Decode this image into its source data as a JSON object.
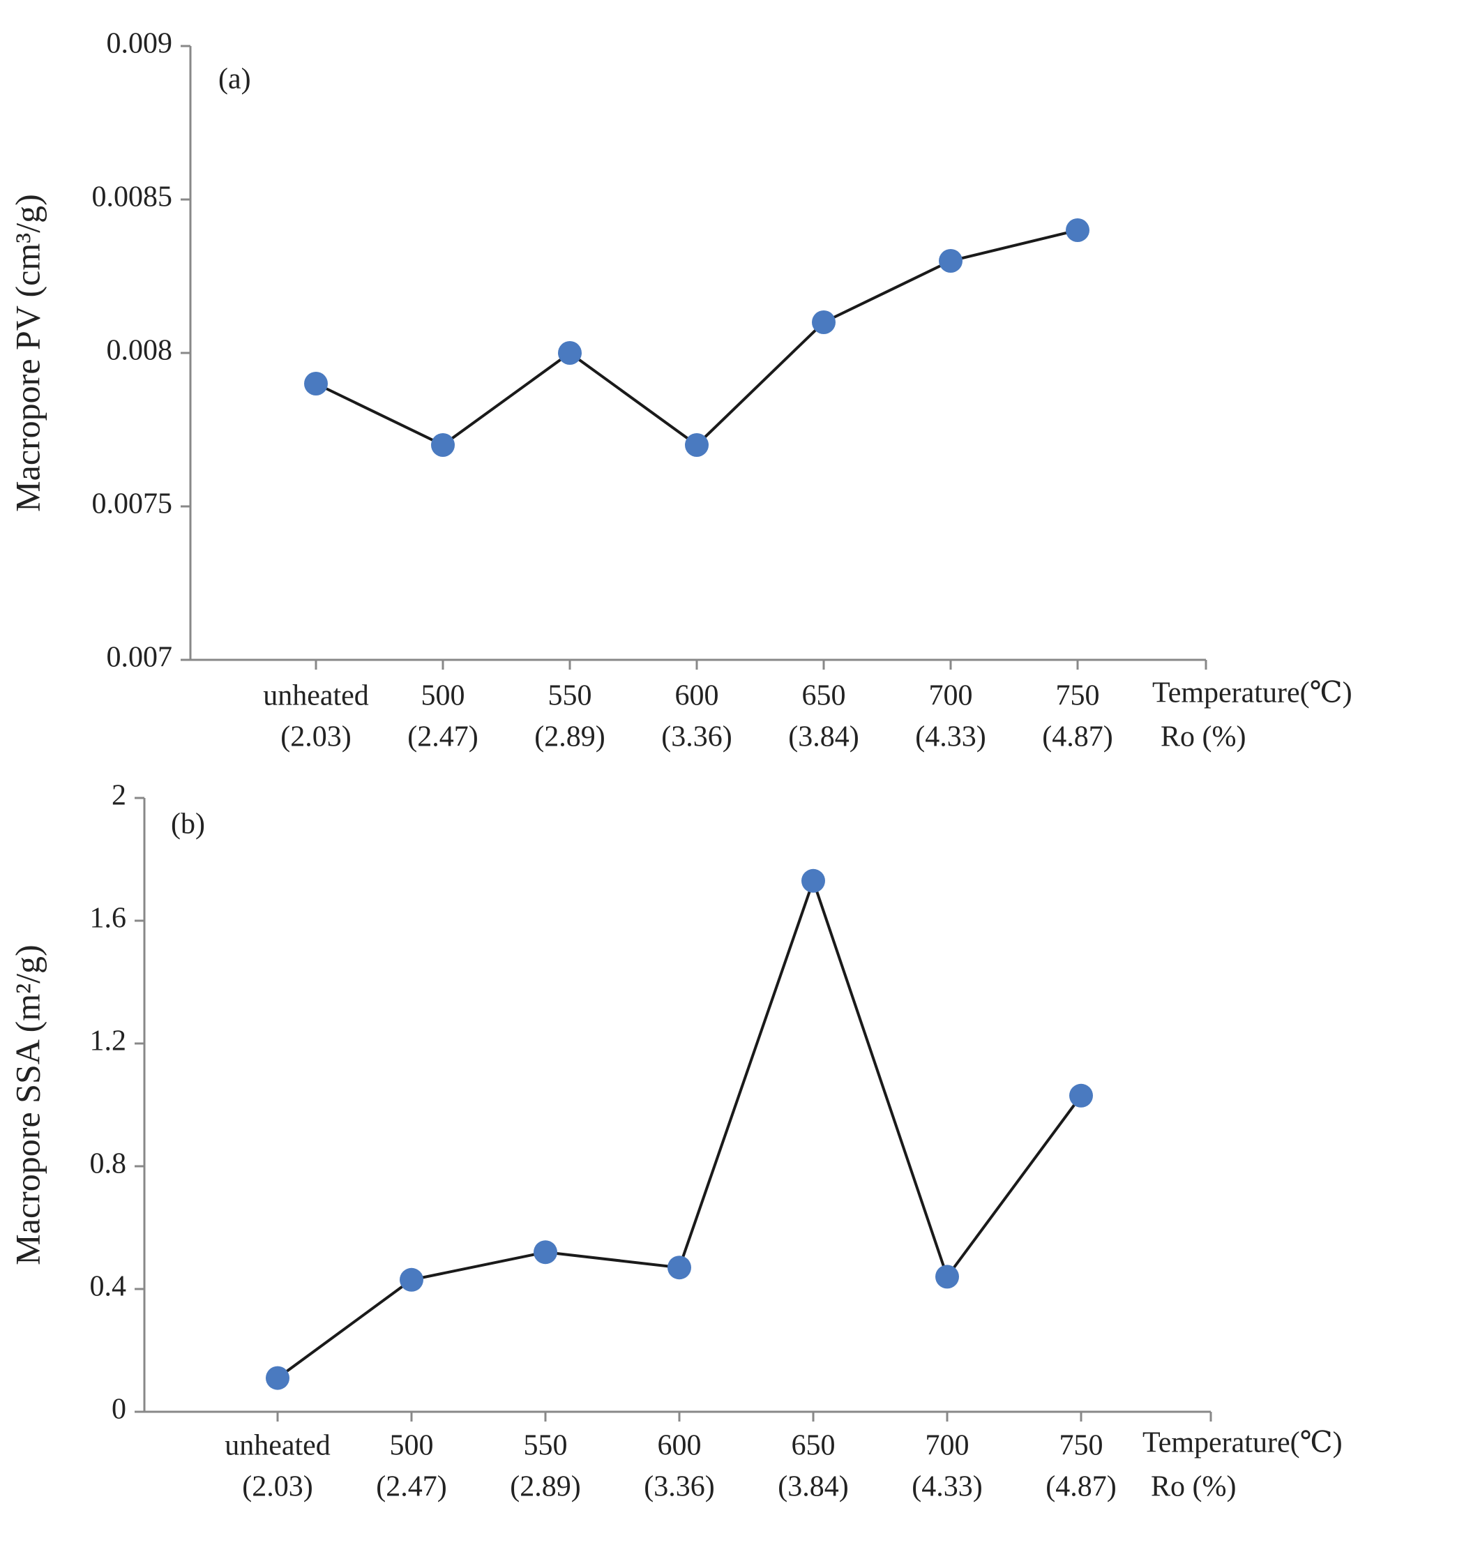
{
  "chart_data": [
    {
      "type": "line",
      "panel_label": "(a)",
      "y_label": "Macropore PV (cm³/g)",
      "x_label": "Temperature(℃)",
      "x_sublabel": "Ro (%)",
      "categories": [
        "unheated",
        "500",
        "550",
        "600",
        "650",
        "700",
        "750"
      ],
      "category_sublabels": [
        "(2.03)",
        "(2.47)",
        "(2.89)",
        "(3.36)",
        "(3.84)",
        "(4.33)",
        "(4.87)"
      ],
      "series": [
        {
          "color": "#4a7ac0",
          "line_color": "#1a1a1a",
          "values": [
            0.0079,
            0.0077,
            0.008,
            0.0077,
            0.0081,
            0.0083,
            0.0084
          ]
        }
      ],
      "ylim": [
        0.007,
        0.009
      ],
      "yticks": [
        0.007,
        0.0075,
        0.008,
        0.0085,
        0.009
      ],
      "grid": false
    },
    {
      "type": "line",
      "panel_label": "(b)",
      "y_label": "Macropore SSA (m²/g)",
      "x_label": "Temperature(℃)",
      "x_sublabel": "Ro (%)",
      "categories": [
        "unheated",
        "500",
        "550",
        "600",
        "650",
        "700",
        "750"
      ],
      "category_sublabels": [
        "(2.03)",
        "(2.47)",
        "(2.89)",
        "(3.36)",
        "(3.84)",
        "(4.33)",
        "(4.87)"
      ],
      "series": [
        {
          "color": "#4a7ac0",
          "line_color": "#1a1a1a",
          "values": [
            0.11,
            0.43,
            0.52,
            0.47,
            1.73,
            0.44,
            1.03
          ]
        }
      ],
      "ylim": [
        0,
        2
      ],
      "yticks": [
        0,
        0.4,
        0.8,
        1.2,
        1.6,
        2
      ],
      "grid": false
    }
  ]
}
